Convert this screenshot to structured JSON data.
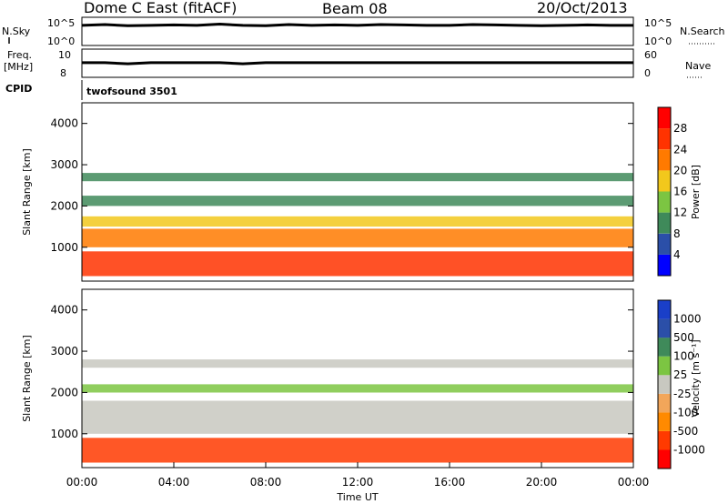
{
  "chart_data": [
    {
      "type": "line",
      "header": {
        "left": "Dome C East (fitACF)",
        "center": "Beam 08",
        "right": "20/Oct/2013"
      },
      "title": "",
      "left_label": "N.Sky",
      "right_label": "N.Search",
      "left_ticks": [
        "10^5",
        "10^0"
      ],
      "right_ticks": [
        "10^5",
        "10^0"
      ],
      "xlim": [
        0,
        24
      ],
      "series": [
        {
          "values": [
            5.0,
            5.2,
            4.9,
            5.0,
            5.1,
            5.0,
            5.3,
            5.0,
            4.9,
            5.2,
            5.0,
            5.1,
            5.0,
            5.2,
            5.1,
            5.0,
            5.0,
            5.2,
            5.1,
            5.0,
            4.9,
            5.0,
            5.1,
            5.0,
            5.0
          ]
        }
      ]
    },
    {
      "type": "line",
      "left_label": "Freq.",
      "left_unit": "[MHz]",
      "right_label": "Nave",
      "left_ticks": [
        "10",
        "8"
      ],
      "right_ticks": [
        "60",
        "0"
      ],
      "xlim": [
        0,
        24
      ],
      "series": [
        {
          "values": [
            9.3,
            9.3,
            9.2,
            9.3,
            9.3,
            9.3,
            9.3,
            9.2,
            9.3,
            9.3,
            9.3,
            9.3,
            9.3,
            9.3,
            9.3,
            9.3,
            9.3,
            9.3,
            9.3,
            9.3,
            9.3,
            9.3,
            9.3,
            9.3,
            9.3
          ]
        }
      ]
    },
    {
      "type": "table",
      "label": "CPID",
      "value": "twofsound 3501"
    },
    {
      "type": "heatmap",
      "ylabel": "Slant Range [km]",
      "ylim": [
        180,
        4500
      ],
      "yticks": [
        1000,
        2000,
        3000,
        4000
      ],
      "xlim": [
        0,
        24
      ],
      "colorbar_label": "Power [dB]",
      "colorbar_ticks": [
        "28",
        "24",
        "20",
        "16",
        "12",
        "8",
        "4"
      ],
      "colorbar_colors": [
        "#0000ff",
        "#2b4fa8",
        "#3f8a5a",
        "#7cc542",
        "#f2c81c",
        "#ff7a00",
        "#ff3300",
        "#ff0000"
      ],
      "bands": [
        {
          "r0": 300,
          "r1": 900,
          "value": 28
        },
        {
          "r0": 1000,
          "r1": 1450,
          "value": 24
        },
        {
          "r0": 1500,
          "r1": 1750,
          "value": 18
        },
        {
          "r0": 2000,
          "r1": 2250,
          "value": 10
        },
        {
          "r0": 2600,
          "r1": 2800,
          "value": 8
        }
      ]
    },
    {
      "type": "heatmap",
      "ylabel": "Slant Range [km]",
      "xlabel": "Time UT",
      "xticks": [
        "00:00",
        "04:00",
        "08:00",
        "12:00",
        "16:00",
        "20:00",
        "00:00"
      ],
      "ylim": [
        180,
        4500
      ],
      "yticks": [
        1000,
        2000,
        3000,
        4000
      ],
      "xlim": [
        0,
        24
      ],
      "colorbar_label": "Velocity [m s⁻¹]",
      "colorbar_ticks": [
        "1000",
        "500",
        "100",
        "25",
        "-25",
        "-100",
        "-500",
        "-1000"
      ],
      "colorbar_colors": [
        "#ff0000",
        "#ff3a00",
        "#ff8a00",
        "#f2a65a",
        "#c8c8c0",
        "#7cc542",
        "#3f8a5a",
        "#2b4fa8",
        "#1a3fc8"
      ],
      "bands": [
        {
          "r0": 300,
          "r1": 900,
          "value": -200
        },
        {
          "r0": 1000,
          "r1": 1800,
          "value": 0
        },
        {
          "r0": 2000,
          "r1": 2200,
          "value": 80
        },
        {
          "r0": 2600,
          "r1": 2800,
          "value": 0
        }
      ]
    }
  ]
}
